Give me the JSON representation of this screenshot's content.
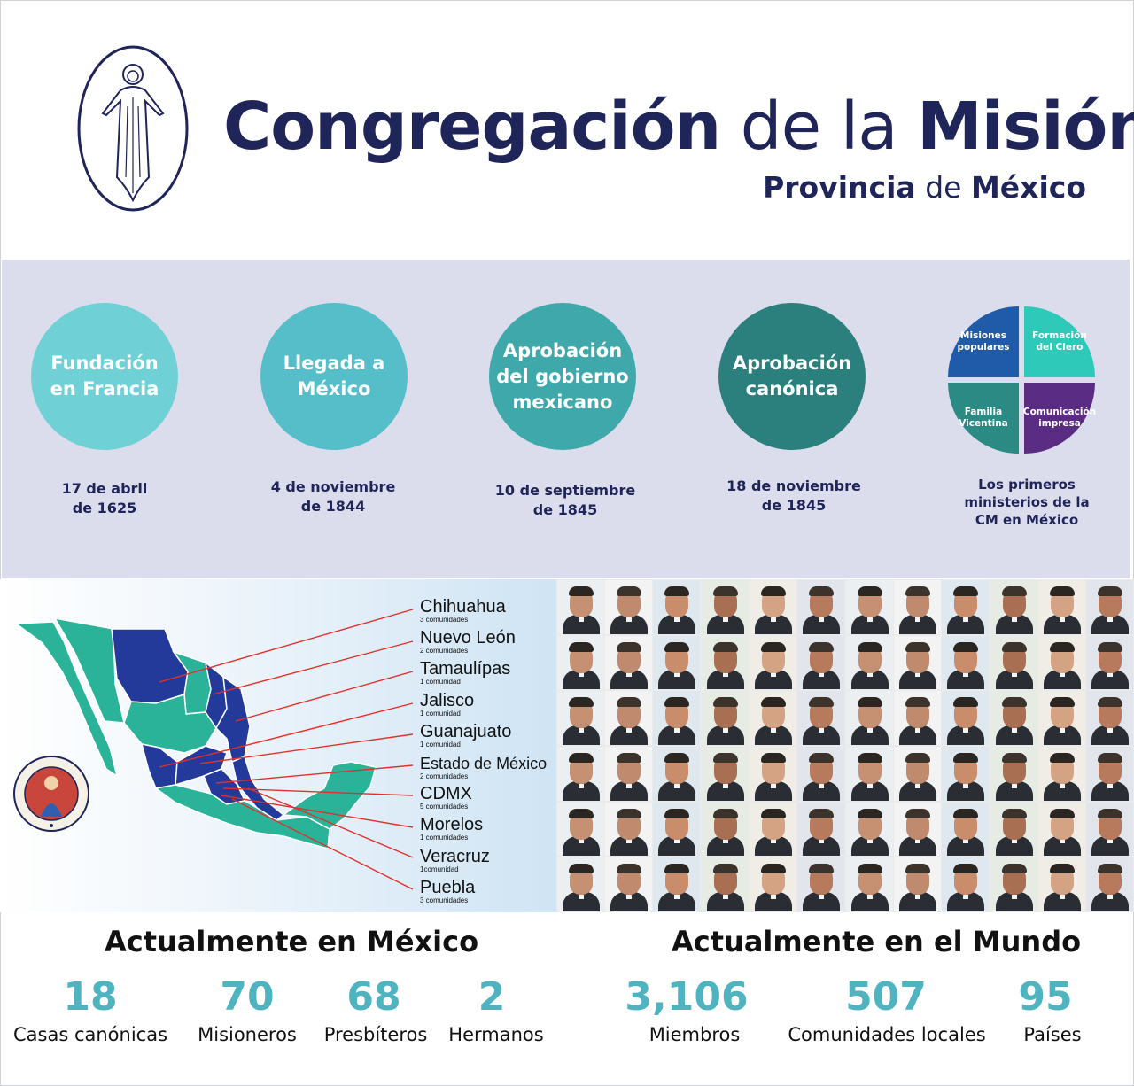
{
  "header": {
    "title_bold_1": "Congregación",
    "title_light": "de la",
    "title_bold_2": "Misión",
    "subtitle_bold_1": "Provincia",
    "subtitle_light": "de",
    "subtitle_bold_2": "México"
  },
  "timeline": [
    {
      "label_1": "Fundación",
      "label_2": "en Francia",
      "date_1": "17 de abril",
      "date_2": "de 1625",
      "color": "#6fd0d6"
    },
    {
      "label_1": "Llegada a",
      "label_2": "México",
      "date_1": "4 de noviembre",
      "date_2": "de 1844",
      "color": "#56bec8"
    },
    {
      "label_1": "Aprobación",
      "label_2": "del gobierno",
      "label_3": "mexicano",
      "date_1": "10 de septiembre",
      "date_2": "de 1845",
      "color": "#3fa8aa"
    },
    {
      "label_1": "Aprobación",
      "label_2": "canónica",
      "date_1": "18 de noviembre",
      "date_2": "de 1845",
      "color": "#2b7f7c"
    }
  ],
  "ministries": {
    "items": [
      {
        "l1": "Misiones",
        "l2": "populares",
        "color": "#1f5ba8"
      },
      {
        "l1": "Formación",
        "l2": "del Clero",
        "color": "#2ec9b8"
      },
      {
        "l1": "Familia",
        "l2": "Vicentina",
        "color": "#2c8a85"
      },
      {
        "l1": "Comunicación",
        "l2": "impresa",
        "color": "#5b2c83"
      }
    ],
    "caption_1": "Los primeros",
    "caption_2": "ministerios de la",
    "caption_3": "CM en México"
  },
  "map": {
    "seal_text": "EVANGELIZARE · PAUPERIBUS · MISIT · ME",
    "states": [
      {
        "name": "Chihuahua",
        "count": "3 comunidades"
      },
      {
        "name": "Nuevo León",
        "count": "2 comunidades"
      },
      {
        "name": "Tamaulípas",
        "count": "1 comunidad"
      },
      {
        "name": "Jalisco",
        "count": "1 comunidad"
      },
      {
        "name": "Guanajuato",
        "count": "1 comunidad"
      },
      {
        "name": "Estado de México",
        "count": "2 comunidades"
      },
      {
        "name": "CDMX",
        "count": "5 comunidades"
      },
      {
        "name": "Morelos",
        "count": "1 comunidades"
      },
      {
        "name": "Veracruz",
        "count": "1comunidad"
      },
      {
        "name": "Puebla",
        "count": "3 comunidades"
      }
    ]
  },
  "stats_mexico": {
    "title": "Actualmente en México",
    "items": [
      {
        "value": "18",
        "label": "Casas canónicas"
      },
      {
        "value": "70",
        "label": "Misioneros"
      },
      {
        "value": "68",
        "label": "Presbíteros"
      },
      {
        "value": "2",
        "label": "Hermanos"
      }
    ]
  },
  "stats_world": {
    "title": "Actualmente en el Mundo",
    "items": [
      {
        "value": "3,106",
        "label": "Miembros"
      },
      {
        "value": "507",
        "label": "Comunidades locales"
      },
      {
        "value": "95",
        "label": "Países"
      }
    ]
  },
  "colors": {
    "navy": "#1f2459",
    "band": "#dcddec",
    "stat_number": "#4fb3c0",
    "map_green": "#2bb39a",
    "map_blue": "#243a9a",
    "arrow": "#e0302b"
  }
}
